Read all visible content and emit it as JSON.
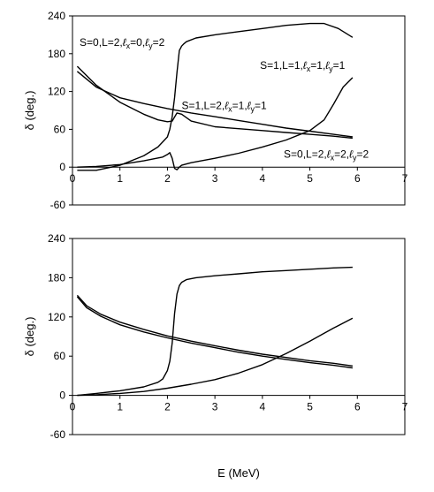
{
  "xlabel": "E (MeV)",
  "chart_data": [
    {
      "type": "line",
      "title": "",
      "xlabel": "",
      "ylabel": "δ (deg.)",
      "xlim": [
        0,
        7
      ],
      "ylim": [
        -60,
        240
      ],
      "xticks": [
        0,
        1,
        2,
        3,
        4,
        5,
        6,
        7
      ],
      "yticks": [
        -60,
        0,
        60,
        120,
        180,
        240
      ],
      "grid": false,
      "annotations": [
        {
          "id": "s0l2-00",
          "parts": [
            "S=0,L=2,",
            "ℓ",
            "x",
            "=0,",
            "ℓ",
            "y",
            "=2"
          ]
        },
        {
          "id": "s1l1-11",
          "parts": [
            "S=1,L=1,",
            "ℓ",
            "x",
            "=1,",
            "ℓ",
            "y",
            "=1"
          ]
        },
        {
          "id": "s1l2-11",
          "parts": [
            "S=1,L=2,",
            "ℓ",
            "x",
            "=1,",
            "ℓ",
            "y",
            "=1"
          ]
        },
        {
          "id": "s0l2-22",
          "parts": [
            "S=0,L=2,",
            "ℓ",
            "x",
            "=2,",
            "ℓ",
            "y",
            "=2"
          ]
        }
      ],
      "series": [
        {
          "x": [
            0.1,
            0.5,
            1.0,
            1.5,
            1.8,
            2.0,
            2.05,
            2.1,
            2.15,
            2.2,
            2.25,
            2.3,
            2.35,
            2.4,
            2.6,
            3.0,
            3.5,
            4.0,
            4.5,
            5.0,
            5.3,
            5.6,
            5.9
          ],
          "y": [
            -5,
            -5,
            3,
            18,
            32,
            48,
            60,
            80,
            110,
            150,
            185,
            192,
            196,
            199,
            205,
            210,
            215,
            220,
            225,
            228,
            228,
            220,
            206
          ]
        },
        {
          "x": [
            0.1,
            0.5,
            1.0,
            1.5,
            1.9,
            2.0,
            2.05,
            2.1,
            2.15,
            2.2,
            2.25,
            2.3,
            2.5,
            3.0,
            3.5,
            4.0,
            4.5,
            5.0,
            5.3,
            5.5,
            5.7,
            5.9
          ],
          "y": [
            0,
            1,
            4,
            10,
            16,
            20,
            23,
            14,
            -2,
            -4,
            0,
            3,
            7,
            14,
            22,
            32,
            43,
            58,
            75,
            100,
            127,
            142
          ]
        },
        {
          "x": [
            0.1,
            0.5,
            1.0,
            1.5,
            1.8,
            2.0,
            2.1,
            2.2,
            2.3,
            2.5,
            3.0,
            3.5,
            4.0,
            4.5,
            5.0,
            5.5,
            5.9
          ],
          "y": [
            160,
            130,
            103,
            84,
            75,
            72,
            73,
            86,
            84,
            73,
            64,
            61,
            58,
            55,
            52,
            49,
            46
          ]
        },
        {
          "x": [
            0.1,
            0.5,
            1.0,
            1.5,
            2.0,
            2.5,
            3.0,
            3.5,
            4.0,
            4.5,
            5.0,
            5.5,
            5.9
          ],
          "y": [
            152,
            127,
            110,
            101,
            93,
            86,
            80,
            74,
            68,
            62,
            57,
            52,
            48
          ]
        }
      ]
    },
    {
      "type": "line",
      "title": "",
      "xlabel": "E (MeV)",
      "ylabel": "δ (deg.)",
      "xlim": [
        0,
        7
      ],
      "ylim": [
        -60,
        240
      ],
      "xticks": [
        0,
        1,
        2,
        3,
        4,
        5,
        6,
        7
      ],
      "yticks": [
        -60,
        0,
        60,
        120,
        180,
        240
      ],
      "grid": false,
      "series": [
        {
          "x": [
            0.1,
            0.5,
            1.0,
            1.5,
            1.8,
            1.9,
            2.0,
            2.05,
            2.1,
            2.15,
            2.2,
            2.25,
            2.3,
            2.4,
            2.6,
            3.0,
            3.5,
            4.0,
            4.5,
            5.0,
            5.5,
            5.9
          ],
          "y": [
            0,
            3,
            7,
            13,
            20,
            25,
            38,
            52,
            80,
            125,
            155,
            168,
            173,
            177,
            180,
            183,
            186,
            189,
            191,
            193,
            195,
            196
          ]
        },
        {
          "x": [
            0.1,
            0.5,
            1.0,
            1.5,
            2.0,
            2.5,
            3.0,
            3.5,
            4.0,
            4.5,
            5.0,
            5.5,
            5.9
          ],
          "y": [
            0,
            1,
            3,
            6,
            11,
            17,
            24,
            34,
            47,
            64,
            83,
            103,
            118
          ]
        },
        {
          "x": [
            0.1,
            0.3,
            0.6,
            1.0,
            1.5,
            2.0,
            2.5,
            3.0,
            3.5,
            4.0,
            4.5,
            5.0,
            5.5,
            5.9
          ],
          "y": [
            153,
            137,
            124,
            112,
            101,
            91,
            83,
            76,
            69,
            63,
            58,
            53,
            49,
            45
          ]
        },
        {
          "x": [
            0.1,
            0.3,
            0.6,
            1.0,
            1.5,
            2.0,
            2.5,
            3.0,
            3.5,
            4.0,
            4.5,
            5.0,
            5.5,
            5.9
          ],
          "y": [
            151,
            134,
            121,
            108,
            97,
            88,
            80,
            73,
            66,
            60,
            55,
            50,
            46,
            42
          ]
        }
      ]
    }
  ]
}
